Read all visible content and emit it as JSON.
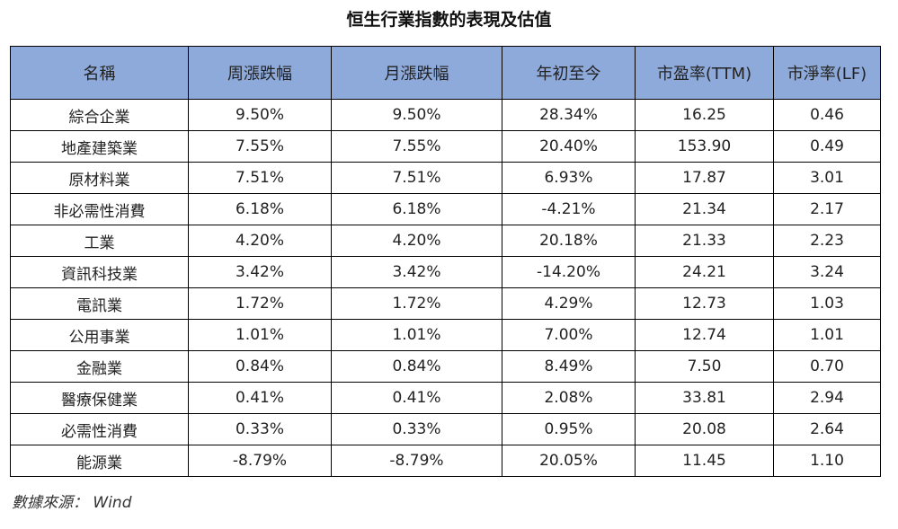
{
  "title": "恒生行業指數的表現及估值",
  "columns": [
    "名稱",
    "周漲跌幅",
    "月漲跌幅",
    "年初至今",
    "市盈率(TTM)",
    "市淨率(LF)"
  ],
  "rows": [
    [
      "綜合企業",
      "9.50%",
      "9.50%",
      "28.34%",
      "16.25",
      "0.46"
    ],
    [
      "地產建築業",
      "7.55%",
      "7.55%",
      "20.40%",
      "153.90",
      "0.49"
    ],
    [
      "原材料業",
      "7.51%",
      "7.51%",
      "6.93%",
      "17.87",
      "3.01"
    ],
    [
      "非必需性消費",
      "6.18%",
      "6.18%",
      "-4.21%",
      "21.34",
      "2.17"
    ],
    [
      "工業",
      "4.20%",
      "4.20%",
      "20.18%",
      "21.33",
      "2.23"
    ],
    [
      "資訊科技業",
      "3.42%",
      "3.42%",
      "-14.20%",
      "24.21",
      "3.24"
    ],
    [
      "電訊業",
      "1.72%",
      "1.72%",
      "4.29%",
      "12.73",
      "1.03"
    ],
    [
      "公用事業",
      "1.01%",
      "1.01%",
      "7.00%",
      "12.74",
      "1.01"
    ],
    [
      "金融業",
      "0.84%",
      "0.84%",
      "8.49%",
      "7.50",
      "0.70"
    ],
    [
      "醫療保健業",
      "0.41%",
      "0.41%",
      "2.08%",
      "33.81",
      "2.94"
    ],
    [
      "必需性消費",
      "0.33%",
      "0.33%",
      "0.95%",
      "20.08",
      "2.64"
    ],
    [
      "能源業",
      "-8.79%",
      "-8.79%",
      "20.05%",
      "11.45",
      "1.10"
    ]
  ],
  "source": "數據來源： Wind",
  "colors": {
    "header_background": "#8eaadb",
    "border": "#000000"
  }
}
